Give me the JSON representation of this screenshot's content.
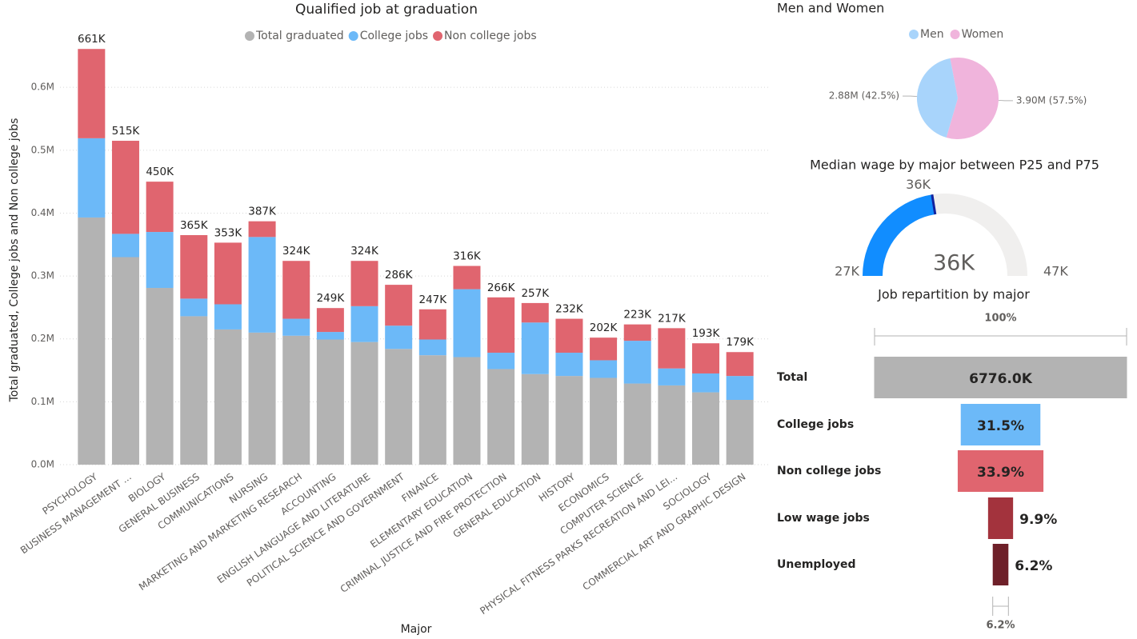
{
  "chart_data": [
    {
      "type": "stacked-bar",
      "title": "Qualified job at graduation",
      "x_label": "Major",
      "y_label": "Total graduated, College jobs and Non college jobs",
      "categories": [
        "PSYCHOLOGY",
        "BUSINESS MANAGEMENT ...",
        "BIOLOGY",
        "GENERAL BUSINESS",
        "COMMUNICATIONS",
        "NURSING",
        "MARKETING AND MARKETING RESEARCH",
        "ACCOUNTING",
        "ENGLISH LANGUAGE AND LITERATURE",
        "POLITICAL SCIENCE AND GOVERNMENT",
        "FINANCE",
        "ELEMENTARY EDUCATION",
        "CRIMINAL JUSTICE AND FIRE PROTECTION",
        "GENERAL EDUCATION",
        "HISTORY",
        "ECONOMICS",
        "COMPUTER SCIENCE",
        "PHYSICAL FITNESS PARKS RECREATION AND LEI...",
        "SOCIOLOGY",
        "COMMERCIAL ART AND GRAPHIC DESIGN"
      ],
      "series": [
        {
          "name": "Total graduated",
          "color": "#b3b3b3",
          "values": [
            393000,
            330000,
            281000,
            236000,
            215000,
            210000,
            205000,
            199000,
            195000,
            184000,
            174000,
            171000,
            152000,
            144000,
            141000,
            138000,
            129000,
            126000,
            115000,
            103000
          ]
        },
        {
          "name": "College jobs",
          "color": "#6cb9f8",
          "values": [
            126000,
            37000,
            89000,
            28000,
            40000,
            152000,
            27000,
            12000,
            57000,
            37000,
            25000,
            108000,
            26000,
            82000,
            37000,
            28000,
            68000,
            27000,
            30000,
            38000
          ]
        },
        {
          "name": "Non college jobs",
          "color": "#e0656f",
          "values": [
            142000,
            148000,
            80000,
            101000,
            98000,
            25000,
            92000,
            38000,
            72000,
            65000,
            48000,
            37000,
            88000,
            31000,
            54000,
            36000,
            26000,
            64000,
            48000,
            38000
          ]
        }
      ],
      "total_labels": [
        "661K",
        "515K",
        "450K",
        "365K",
        "353K",
        "387K",
        "324K",
        "249K",
        "324K",
        "286K",
        "247K",
        "316K",
        "266K",
        "257K",
        "232K",
        "202K",
        "223K",
        "217K",
        "193K",
        "179K"
      ],
      "ylim": [
        0,
        660000
      ],
      "yticks": [
        {
          "value": 0,
          "label": "0.0M"
        },
        {
          "value": 100000,
          "label": "0.1M"
        },
        {
          "value": 200000,
          "label": "0.2M"
        },
        {
          "value": 300000,
          "label": "0.3M"
        },
        {
          "value": 400000,
          "label": "0.4M"
        },
        {
          "value": 500000,
          "label": "0.5M"
        },
        {
          "value": 600000,
          "label": "0.6M"
        }
      ],
      "grid": true
    },
    {
      "type": "pie",
      "title": "Men and Women",
      "categories": [
        "Men",
        "Women"
      ],
      "values": [
        2880000,
        3900000
      ],
      "value_labels": [
        "2.88M (42.5%)",
        "3.90M (57.5%)"
      ],
      "colors": [
        "#a8d4fb",
        "#f0b4dc"
      ]
    },
    {
      "type": "gauge",
      "title": "Median wage by major between P25 and P75",
      "value": 36000,
      "value_label": "36K",
      "target": 36000,
      "target_label": "36K",
      "ylim": [
        27000,
        47000
      ],
      "yticks": [
        {
          "value": 27000,
          "label": "27K"
        },
        {
          "value": 47000,
          "label": "47K"
        }
      ],
      "color": "#118dff"
    },
    {
      "type": "funnel",
      "title": "Job repartition by major",
      "categories": [
        "Total",
        "College jobs",
        "Non college jobs",
        "Low wage jobs",
        "Unemployed"
      ],
      "values": [
        100,
        31.5,
        33.9,
        9.9,
        6.2
      ],
      "value_labels": [
        "100%",
        "31.5%",
        "33.9%",
        "9.9%",
        "6.2%"
      ],
      "total_label": "6776.0K",
      "colors": [
        "#b3b3b3",
        "#6cb9f8",
        "#e0656f",
        "#a3333d",
        "#6e2029"
      ]
    }
  ]
}
